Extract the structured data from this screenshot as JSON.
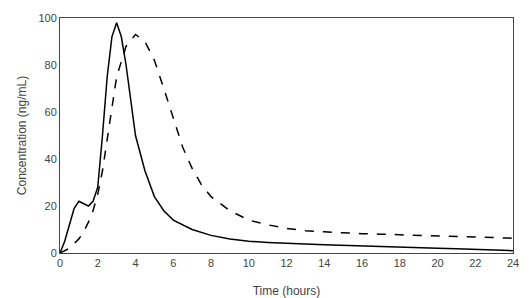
{
  "chart_data": {
    "type": "line",
    "xlabel": "Time (hours)",
    "ylabel": "Concentration (ng/mL)",
    "xlim": [
      0,
      24
    ],
    "ylim": [
      0,
      100
    ],
    "xticks": [
      0,
      2,
      4,
      6,
      8,
      10,
      12,
      14,
      16,
      18,
      20,
      22,
      24
    ],
    "yticks": [
      0,
      20,
      40,
      60,
      80,
      100
    ],
    "grid": false,
    "series": [
      {
        "color": "#000000",
        "line_style": "solid",
        "x": [
          0,
          0.25,
          0.5,
          0.75,
          1.0,
          1.25,
          1.5,
          1.75,
          2.0,
          2.25,
          2.5,
          2.75,
          3.0,
          3.25,
          3.5,
          3.75,
          4.0,
          4.5,
          5.0,
          5.5,
          6.0,
          7.0,
          8.0,
          9.0,
          10.0,
          11.0,
          12.0,
          13.0,
          14.0,
          15.0,
          16.0,
          17.0,
          18.0,
          19.0,
          20.0,
          21.0,
          22.0,
          23.0,
          24.0
        ],
        "values": [
          0,
          5,
          12,
          19,
          22,
          21,
          20,
          22,
          28,
          50,
          75,
          92,
          98,
          92,
          80,
          65,
          50,
          35,
          24,
          18,
          14,
          10,
          7.5,
          6.0,
          5.0,
          4.5,
          4.0,
          3.8,
          3.5,
          3.2,
          3.0,
          2.8,
          2.5,
          2.2,
          2.0,
          1.8,
          1.5,
          1.3,
          1.0
        ]
      },
      {
        "color": "#000000",
        "line_style": "dashed",
        "x": [
          0,
          0.25,
          0.5,
          0.75,
          1.0,
          1.25,
          1.5,
          1.75,
          2.0,
          2.25,
          2.5,
          2.75,
          3.0,
          3.5,
          4.0,
          4.5,
          5.0,
          5.5,
          6.0,
          6.5,
          7.0,
          7.5,
          8.0,
          9.0,
          10.0,
          11.0,
          12.0,
          13.0,
          14.0,
          15.0,
          16.0,
          17.0,
          18.0,
          19.0,
          20.0,
          21.0,
          22.0,
          23.0,
          24.0
        ],
        "values": [
          0,
          1,
          2,
          4,
          6,
          9,
          13,
          18,
          25,
          35,
          48,
          62,
          75,
          88,
          93,
          90,
          82,
          70,
          57,
          45,
          36,
          29,
          24,
          18,
          14,
          12,
          10.5,
          9.5,
          9.0,
          8.5,
          8.2,
          8.0,
          7.8,
          7.5,
          7.2,
          7.0,
          6.8,
          6.5,
          6.3
        ]
      }
    ]
  }
}
